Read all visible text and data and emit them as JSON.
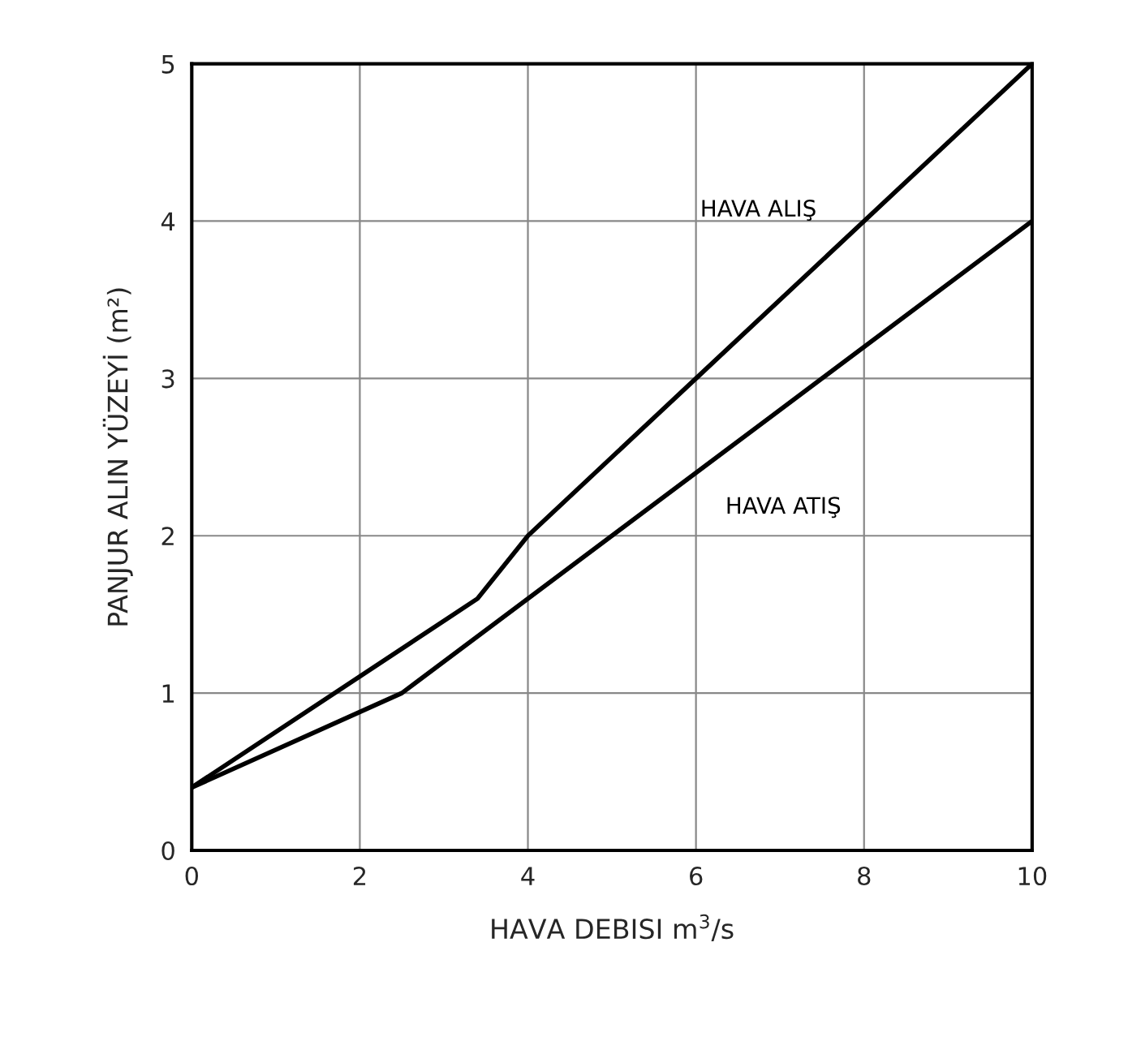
{
  "chart_data": {
    "type": "line",
    "xlabel": "HAVA DEBISI m$^{3}$/s",
    "ylabel": "PANJUR ALIN YÜZEYİ (m²)",
    "xlim": [
      0,
      10
    ],
    "ylim": [
      0,
      5
    ],
    "xticks": [
      0,
      2,
      4,
      6,
      8,
      10
    ],
    "yticks": [
      0,
      1,
      2,
      3,
      4,
      5
    ],
    "grid": true,
    "marker": "none",
    "line_style": "solid",
    "series": [
      {
        "name": "HAVA ALIŞ",
        "color": "#000000",
        "x": [
          0,
          3.4,
          4,
          6,
          10
        ],
        "values": [
          0.4,
          1.6,
          2,
          3,
          5
        ]
      },
      {
        "name": "HAVA ATIŞ",
        "color": "#000000",
        "x": [
          0,
          2.5,
          10
        ],
        "values": [
          0.4,
          1,
          4
        ]
      }
    ]
  }
}
